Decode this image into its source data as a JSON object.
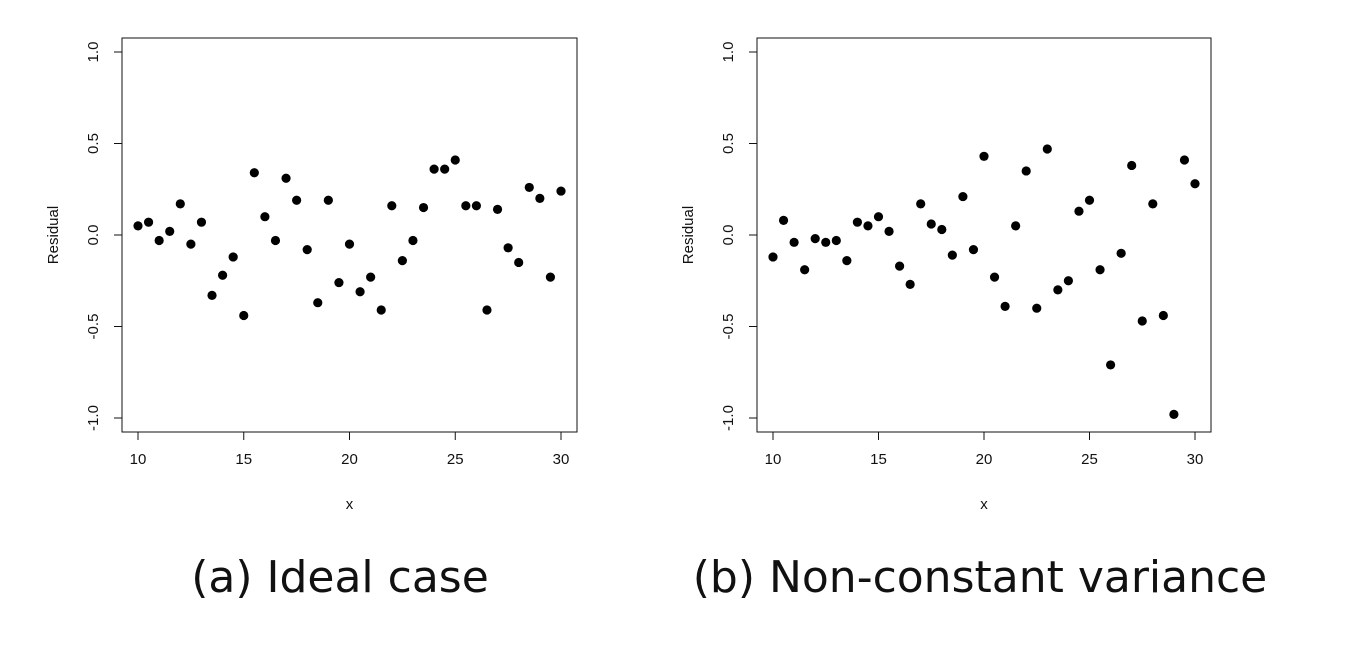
{
  "figures": [
    {
      "caption": "(a) Ideal case",
      "chart_data": {
        "type": "scatter",
        "xlabel": "x",
        "ylabel": "Residual",
        "xlim": [
          10,
          30
        ],
        "ylim": [
          -1.0,
          1.0
        ],
        "xticks": [
          "10",
          "15",
          "20",
          "25",
          "30"
        ],
        "yticks": [
          "-1.0",
          "-0.5",
          "0.0",
          "0.5",
          "1.0"
        ],
        "grid": false,
        "x": [
          10,
          10.5,
          11,
          11.5,
          12,
          12.5,
          13,
          13.5,
          14,
          14.5,
          15,
          15.5,
          16,
          16.5,
          17,
          17.5,
          18,
          18.5,
          19,
          19.5,
          20,
          20.5,
          21,
          21.5,
          22,
          22.5,
          23,
          23.5,
          24,
          24.5,
          25,
          25.5,
          26,
          26.5,
          27,
          27.5,
          28,
          28.5,
          29,
          29.5,
          30
        ],
        "y": [
          0.05,
          0.07,
          -0.03,
          0.02,
          0.17,
          -0.05,
          0.07,
          -0.33,
          -0.22,
          -0.12,
          -0.44,
          0.34,
          0.1,
          -0.03,
          0.31,
          0.19,
          -0.08,
          -0.37,
          0.19,
          -0.26,
          -0.05,
          -0.31,
          -0.23,
          -0.41,
          0.16,
          -0.14,
          -0.03,
          0.15,
          0.36,
          0.36,
          0.41,
          0.16,
          0.16,
          -0.41,
          0.14,
          -0.07,
          -0.15,
          0.26,
          0.2,
          -0.23,
          0.24
        ]
      }
    },
    {
      "caption": "(b) Non-constant variance",
      "chart_data": {
        "type": "scatter",
        "xlabel": "x",
        "ylabel": "Residual",
        "xlim": [
          10,
          30
        ],
        "ylim": [
          -1.0,
          1.0
        ],
        "xticks": [
          "10",
          "15",
          "20",
          "25",
          "30"
        ],
        "yticks": [
          "-1.0",
          "-0.5",
          "0.0",
          "0.5",
          "1.0"
        ],
        "grid": false,
        "x": [
          10,
          10.5,
          11,
          11.5,
          12,
          12.5,
          13,
          13.5,
          14,
          14.5,
          15,
          15.5,
          16,
          16.5,
          17,
          17.5,
          18,
          18.5,
          19,
          19.5,
          20,
          20.5,
          21,
          21.5,
          22,
          22.5,
          23,
          23.5,
          24,
          24.5,
          25,
          25.5,
          26,
          26.5,
          27,
          27.5,
          28,
          28.5,
          29,
          29.5,
          30
        ],
        "y": [
          -0.12,
          0.08,
          -0.04,
          -0.19,
          -0.02,
          -0.04,
          -0.03,
          -0.14,
          0.07,
          0.05,
          0.1,
          0.02,
          -0.17,
          -0.27,
          0.17,
          0.06,
          0.03,
          -0.11,
          0.21,
          -0.08,
          0.43,
          -0.23,
          -0.39,
          0.05,
          0.35,
          -0.4,
          0.47,
          -0.3,
          -0.25,
          0.13,
          0.19,
          -0.19,
          -0.71,
          -0.1,
          0.38,
          -0.47,
          0.17,
          -0.44,
          -0.98,
          0.41,
          0.28
        ]
      }
    }
  ]
}
